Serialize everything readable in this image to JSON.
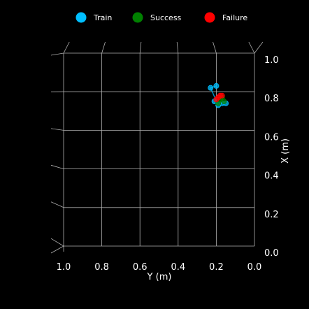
{
  "chart_data": {
    "type": "scatter",
    "projection": "3d",
    "view": "top-down",
    "xlabel": "Y (m)",
    "ylabel": "X (m)",
    "x_ticks": [
      "1.0",
      "0.8",
      "0.6",
      "0.4",
      "0.2",
      "0.0"
    ],
    "y_ticks": [
      "1.0",
      "0.8",
      "0.6",
      "0.4",
      "0.2",
      "0.0"
    ],
    "xlim": [
      1.0,
      0.0
    ],
    "ylim": [
      0.0,
      1.0
    ],
    "grid": true,
    "legend": {
      "position": "top",
      "orientation": "horizontal"
    },
    "series": [
      {
        "name": "Train",
        "color": "#00bfff",
        "points": [
          {
            "y_m": 0.2,
            "x_m": 0.83
          },
          {
            "y_m": 0.23,
            "x_m": 0.82
          },
          {
            "y_m": 0.19,
            "x_m": 0.73
          },
          {
            "y_m": 0.17,
            "x_m": 0.74
          },
          {
            "y_m": 0.15,
            "x_m": 0.74
          },
          {
            "y_m": 0.21,
            "x_m": 0.75
          }
        ]
      },
      {
        "name": "Success",
        "color": "#008000",
        "points": [
          {
            "y_m": 0.18,
            "x_m": 0.76
          },
          {
            "y_m": 0.16,
            "x_m": 0.75
          },
          {
            "y_m": 0.19,
            "x_m": 0.74
          },
          {
            "y_m": 0.17,
            "x_m": 0.77
          }
        ]
      },
      {
        "name": "Failure",
        "color": "#ff0000",
        "points": [
          {
            "y_m": 0.2,
            "x_m": 0.76
          },
          {
            "y_m": 0.18,
            "x_m": 0.78
          },
          {
            "y_m": 0.17,
            "x_m": 0.78
          },
          {
            "y_m": 0.19,
            "x_m": 0.77
          }
        ]
      }
    ]
  }
}
